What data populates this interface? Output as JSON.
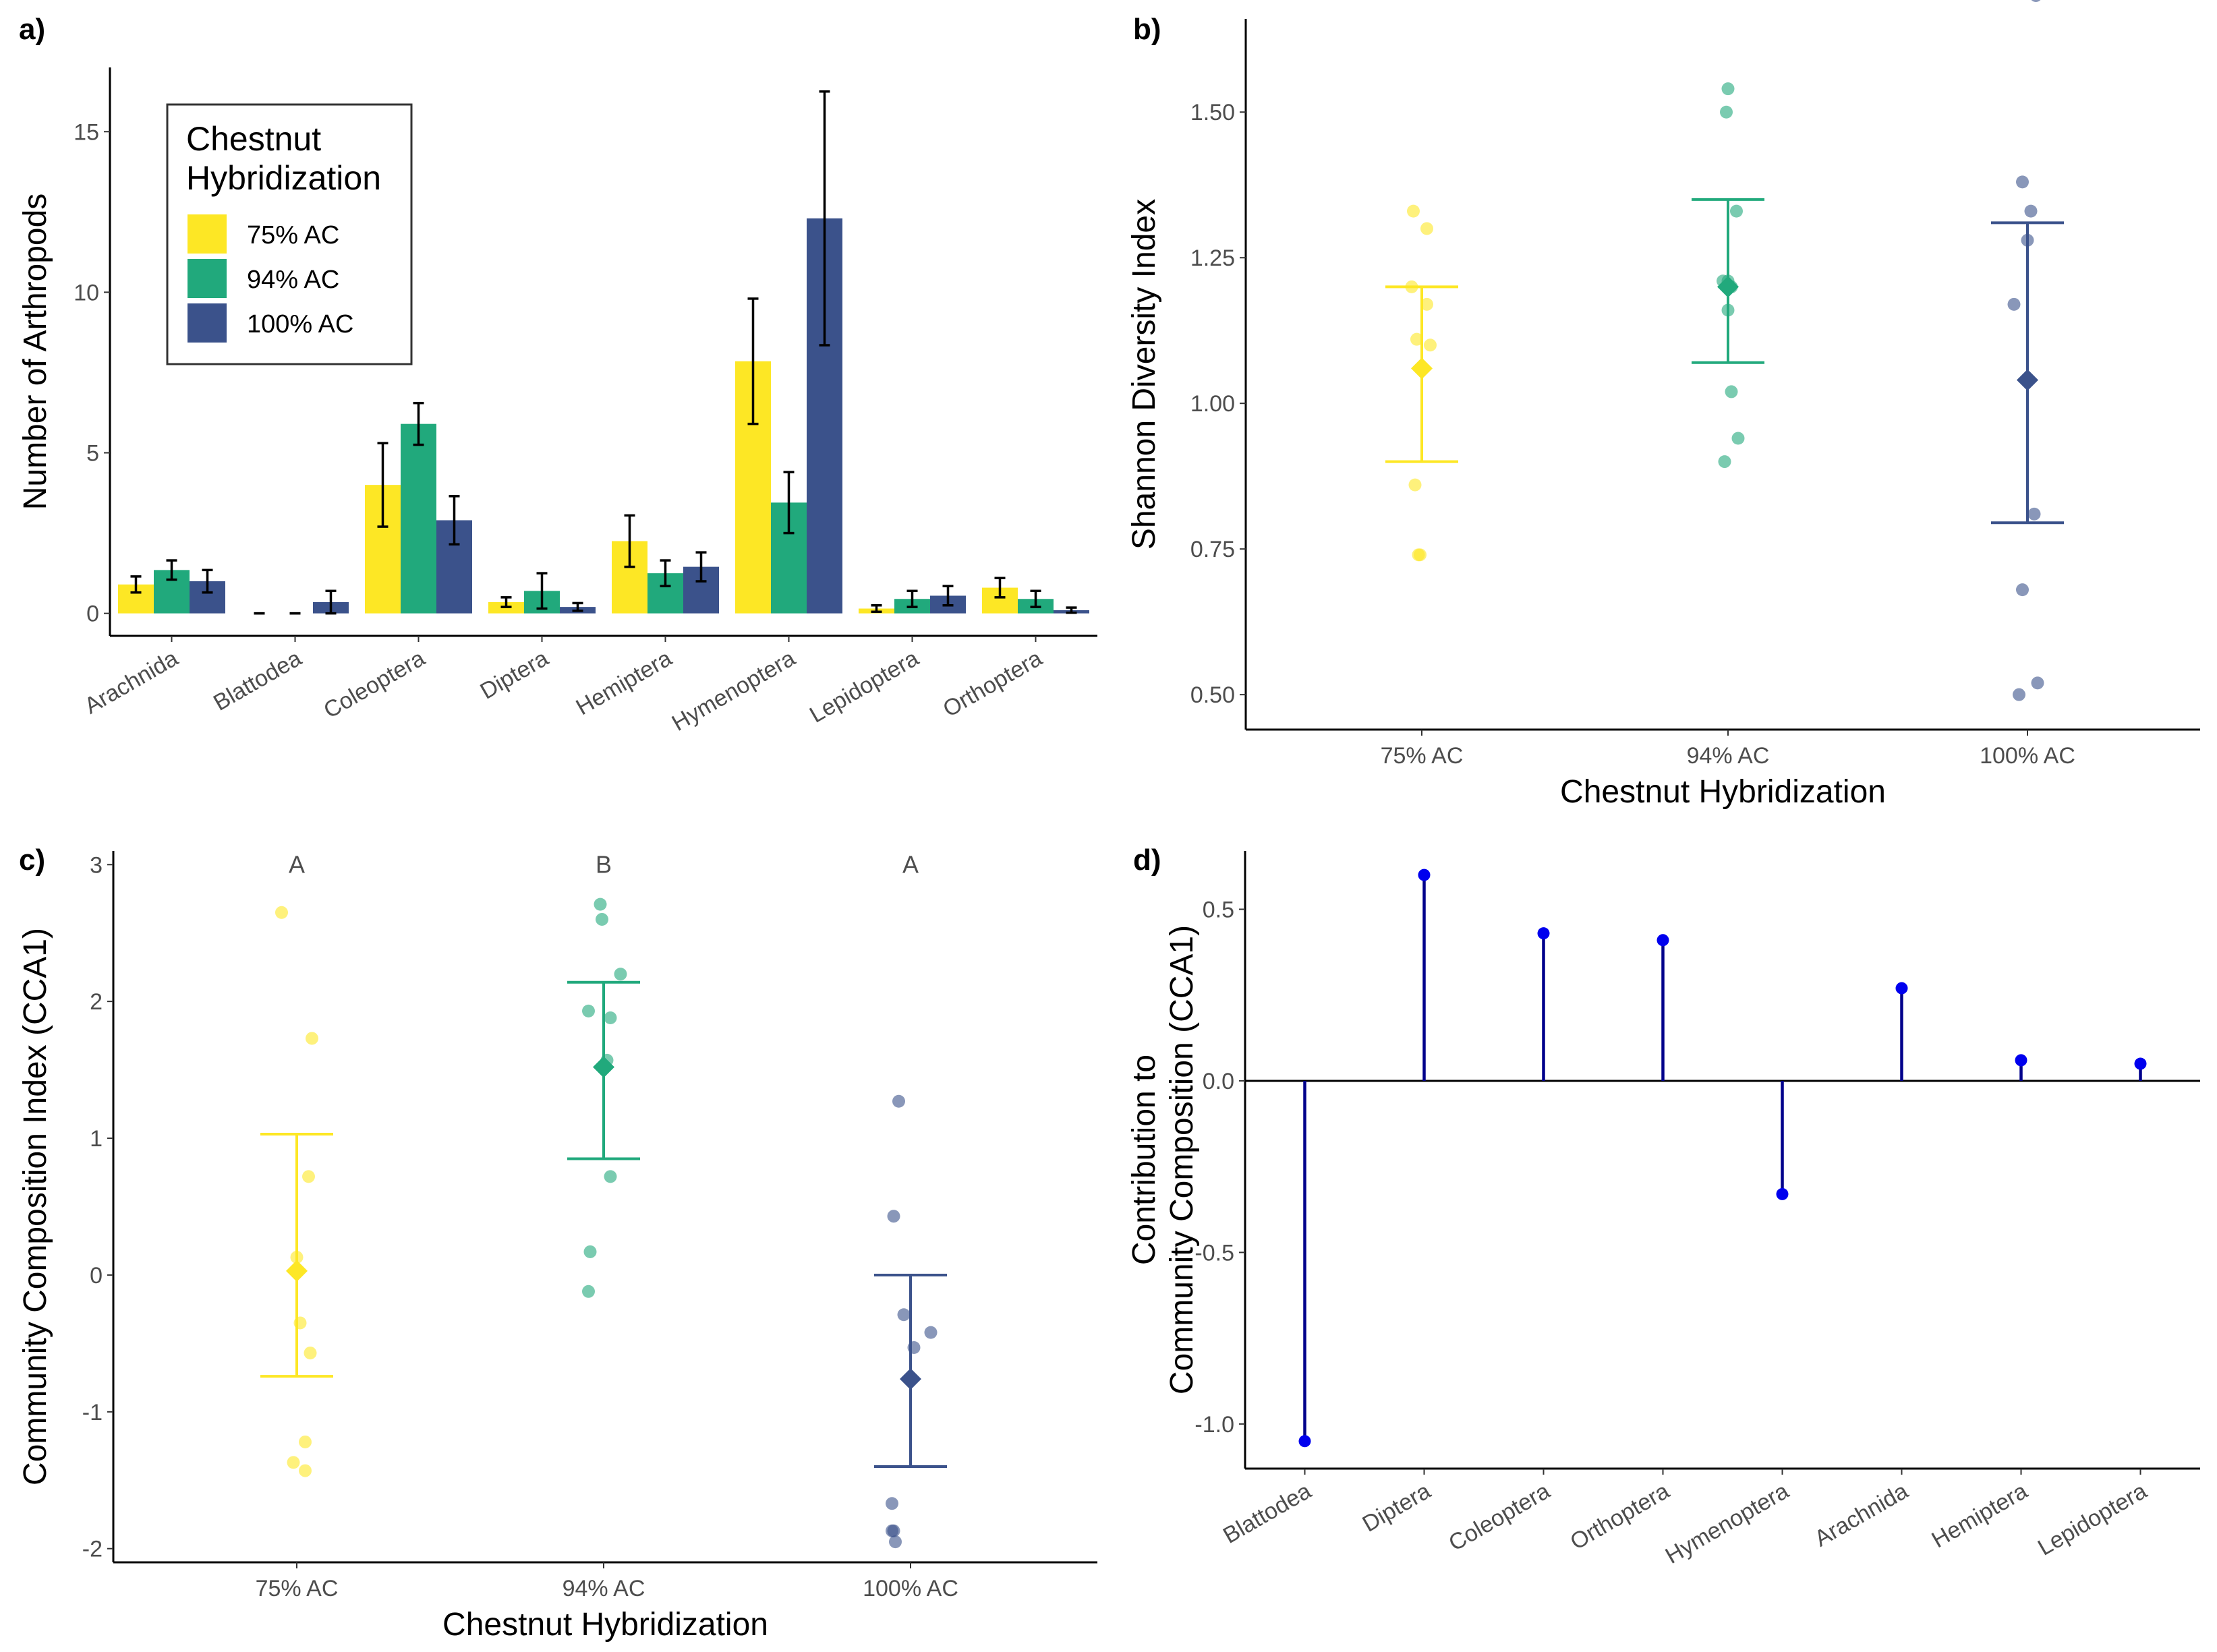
{
  "colors": {
    "75% AC": "#FDE725",
    "94% AC": "#21A97C",
    "100% AC": "#3B528B",
    "stem": "#00008B",
    "stem_point": "#0000EE",
    "axis": "#000000"
  },
  "chart_data": [
    {
      "panel": "a)",
      "type": "bar",
      "xlabel": "",
      "ylabel": "Number of Arthropods",
      "ylim": [
        -0.7,
        17.0
      ],
      "yticks": [
        0,
        5,
        10,
        15
      ],
      "categories": [
        "Arachnida",
        "Blattodea",
        "Coleoptera",
        "Diptera",
        "Hemiptera",
        "Hymenoptera",
        "Lepidoptera",
        "Orthoptera"
      ],
      "legend": {
        "title_lines": [
          "Chestnut",
          "Hybridization"
        ],
        "entries": [
          "75% AC",
          "94% AC",
          "100% AC"
        ],
        "position": "top-left"
      },
      "series": [
        {
          "name": "75% AC",
          "values": [
            0.9,
            0.0,
            4.0,
            0.35,
            2.25,
            7.85,
            0.15,
            0.8
          ],
          "errors": [
            0.25,
            0.0,
            1.3,
            0.15,
            0.8,
            1.95,
            0.1,
            0.3
          ]
        },
        {
          "name": "94% AC",
          "values": [
            1.35,
            0.0,
            5.9,
            0.7,
            1.25,
            3.45,
            0.45,
            0.45
          ],
          "errors": [
            0.3,
            0.0,
            0.65,
            0.55,
            0.4,
            0.95,
            0.25,
            0.25
          ]
        },
        {
          "name": "100% AC",
          "values": [
            1.0,
            0.35,
            2.9,
            0.2,
            1.45,
            12.3,
            0.55,
            0.1
          ],
          "errors": [
            0.35,
            0.35,
            0.75,
            0.12,
            0.45,
            3.95,
            0.3,
            0.08
          ]
        }
      ]
    },
    {
      "panel": "b)",
      "type": "scatter",
      "xlabel": "Chestnut Hybridization",
      "ylabel": "Shannon Diversity Index",
      "ylim": [
        0.44,
        1.66
      ],
      "yticks": [
        0.5,
        0.75,
        1.0,
        1.25,
        1.5
      ],
      "ytick_labels": [
        "0.50",
        "0.75",
        "1.00",
        "1.25",
        "1.50"
      ],
      "categories": [
        "75% AC",
        "94% AC",
        "100% AC"
      ],
      "points": [
        [
          [
            -0.05,
            1.33
          ],
          [
            0.03,
            1.3
          ],
          [
            -0.06,
            1.2
          ],
          [
            0.03,
            1.17
          ],
          [
            -0.03,
            1.11
          ],
          [
            0.05,
            1.1
          ],
          [
            -0.04,
            0.86
          ],
          [
            -0.02,
            0.74
          ],
          [
            -0.01,
            0.74
          ]
        ],
        [
          [
            0.0,
            1.54
          ],
          [
            -0.01,
            1.5
          ],
          [
            0.05,
            1.33
          ],
          [
            -0.03,
            1.21
          ],
          [
            0.0,
            1.21
          ],
          [
            0.02,
            1.2
          ],
          [
            0.0,
            1.16
          ],
          [
            0.02,
            1.02
          ],
          [
            0.06,
            0.94
          ],
          [
            -0.02,
            0.9
          ]
        ],
        [
          [
            0.05,
            1.7
          ],
          [
            -0.03,
            1.38
          ],
          [
            0.02,
            1.33
          ],
          [
            0.0,
            1.28
          ],
          [
            -0.08,
            1.17
          ],
          [
            0.04,
            0.81
          ],
          [
            -0.03,
            0.68
          ],
          [
            0.06,
            0.52
          ],
          [
            -0.05,
            0.5
          ]
        ]
      ],
      "means": [
        1.06,
        1.2,
        1.04
      ],
      "lower": [
        0.9,
        1.07,
        0.795
      ],
      "upper": [
        1.2,
        1.35,
        1.31
      ]
    },
    {
      "panel": "c)",
      "type": "scatter",
      "xlabel": "Chestnut Hybridization",
      "ylabel": "Community Composition Index (CCA1)",
      "ylim": [
        -2.1,
        3.1
      ],
      "yticks": [
        -2,
        -1,
        0,
        1,
        2,
        3
      ],
      "categories": [
        "75% AC",
        "94% AC",
        "100% AC"
      ],
      "significance": [
        "A",
        "B",
        "A"
      ],
      "points": [
        [
          [
            -0.09,
            2.65
          ],
          [
            0.09,
            1.73
          ],
          [
            0.07,
            0.72
          ],
          [
            0.0,
            0.13
          ],
          [
            0.02,
            -0.35
          ],
          [
            0.08,
            -0.57
          ],
          [
            0.05,
            -1.22
          ],
          [
            -0.02,
            -1.37
          ],
          [
            0.05,
            -1.43
          ]
        ],
        [
          [
            -0.02,
            2.71
          ],
          [
            -0.01,
            2.6
          ],
          [
            0.1,
            2.2
          ],
          [
            -0.09,
            1.93
          ],
          [
            0.04,
            1.88
          ],
          [
            0.02,
            1.57
          ],
          [
            0.04,
            0.72
          ],
          [
            -0.08,
            0.17
          ],
          [
            -0.09,
            -0.12
          ]
        ],
        [
          [
            -0.07,
            1.27
          ],
          [
            -0.1,
            0.43
          ],
          [
            -0.04,
            -0.29
          ],
          [
            0.02,
            -0.53
          ],
          [
            0.12,
            -0.42
          ],
          [
            -0.11,
            -1.67
          ],
          [
            -0.1,
            -1.87
          ],
          [
            -0.11,
            -1.87
          ],
          [
            -0.09,
            -1.95
          ]
        ]
      ],
      "means": [
        0.03,
        1.52,
        -0.76
      ],
      "lower": [
        -0.74,
        0.85,
        -1.4
      ],
      "upper": [
        1.03,
        2.14,
        0.0
      ]
    },
    {
      "panel": "d)",
      "type": "lollipop",
      "xlabel": "",
      "ylabel_lines": [
        "Contribution to",
        "Community Composition (CCA1)"
      ],
      "ylim": [
        -1.13,
        0.67
      ],
      "yticks": [
        -1.0,
        -0.5,
        0.0,
        0.5
      ],
      "ytick_labels": [
        "-1.0",
        "-0.5",
        "0.0",
        "0.5"
      ],
      "categories": [
        "Blattodea",
        "Diptera",
        "Coleoptera",
        "Orthoptera",
        "Hymenoptera",
        "Arachnida",
        "Hemiptera",
        "Lepidoptera"
      ],
      "values": [
        -1.05,
        0.6,
        0.43,
        0.41,
        -0.33,
        0.27,
        0.06,
        0.05
      ]
    }
  ]
}
